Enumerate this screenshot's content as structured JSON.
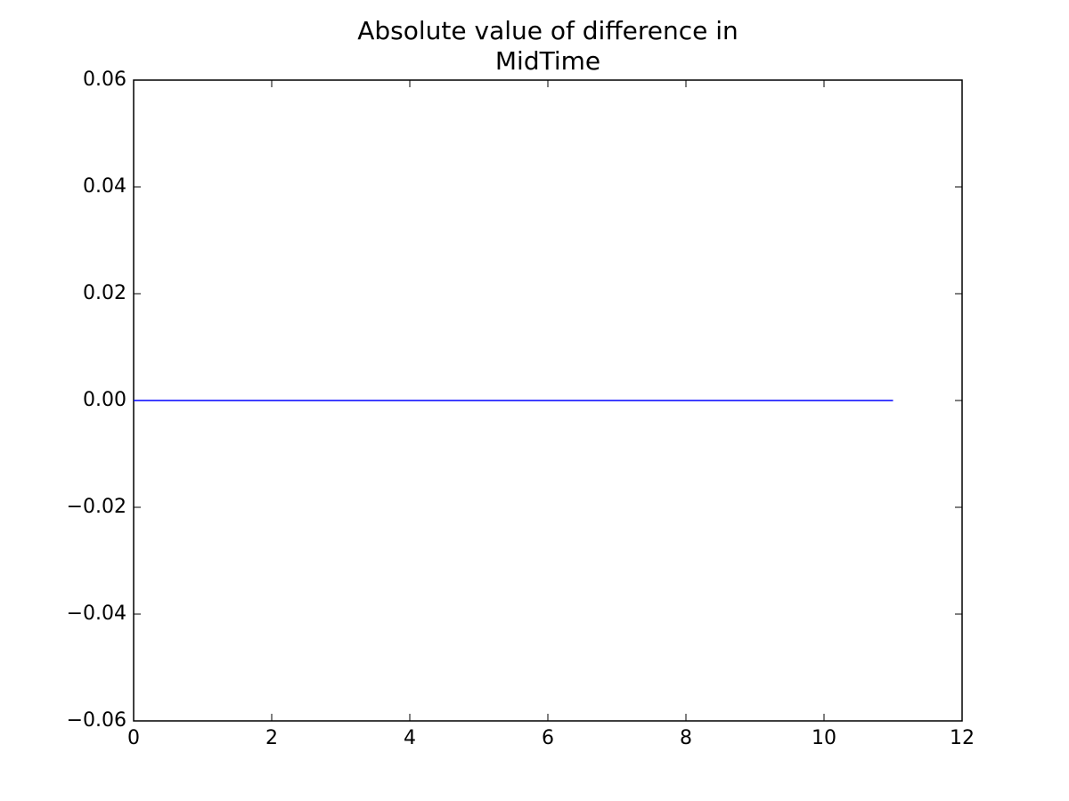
{
  "chart_data": {
    "type": "line",
    "title": "Absolute value of difference in\nMidTime",
    "x": [
      0,
      1,
      2,
      3,
      4,
      5,
      6,
      7,
      8,
      9,
      10,
      11
    ],
    "series": [
      {
        "color": "#0000ff",
        "values": [
          0,
          0,
          0,
          0,
          0,
          0,
          0,
          0,
          0,
          0,
          0,
          0
        ]
      }
    ],
    "xlim": [
      0,
      12
    ],
    "xticks": [
      0,
      2,
      4,
      6,
      8,
      10,
      12
    ],
    "ylim": [
      -0.06,
      0.06
    ],
    "yticks": [
      {
        "value": -0.06,
        "label": "−0.06"
      },
      {
        "value": -0.04,
        "label": "−0.04"
      },
      {
        "value": -0.02,
        "label": "−0.02"
      },
      {
        "value": 0,
        "label": "0.00"
      },
      0.02,
      0.04,
      0.06
    ],
    "grid": false
  }
}
